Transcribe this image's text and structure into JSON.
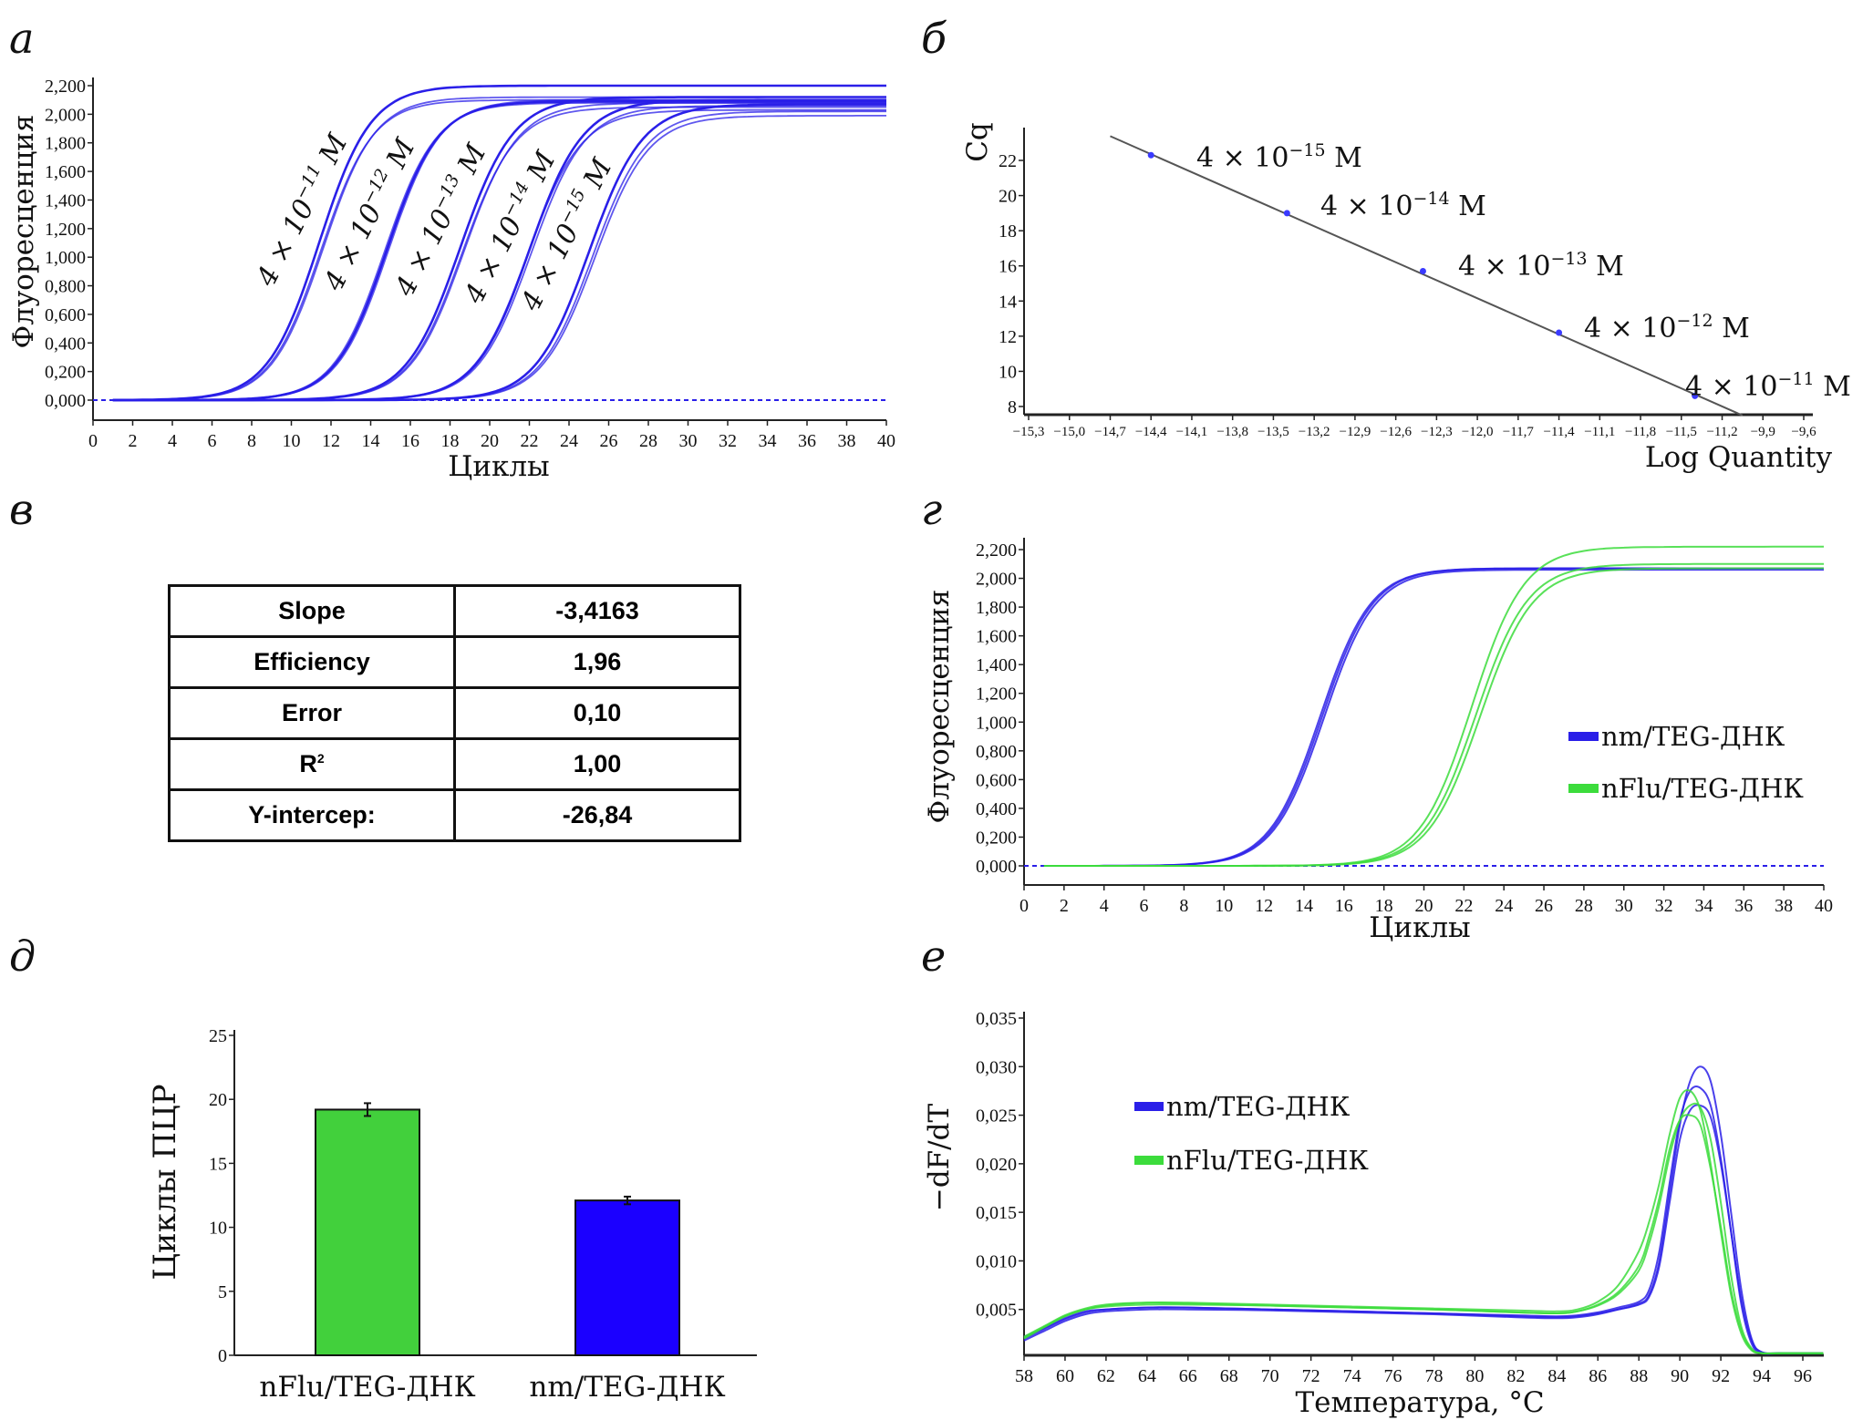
{
  "panel_letters": [
    "а",
    "б",
    "в",
    "г",
    "д",
    "е"
  ],
  "chart_data": [
    {
      "type": "line",
      "xlabel": "Циклы",
      "ylabel": "Флуоресценция",
      "xlim": [
        0,
        40
      ],
      "ylim": [
        0,
        2.2
      ],
      "xticks": [
        "0",
        "2",
        "4",
        "6",
        "8",
        "10",
        "12",
        "14",
        "16",
        "18",
        "20",
        "22",
        "24",
        "26",
        "28",
        "30",
        "32",
        "34",
        "36",
        "38",
        "40"
      ],
      "yticks": [
        "0,000",
        "0,200",
        "0,400",
        "0,600",
        "0,800",
        "1,000",
        "1,200",
        "1,400",
        "1,600",
        "1,800",
        "2,000",
        "2,200"
      ],
      "threshold": 0,
      "line_color": "#2a1fe8",
      "series": [
        {
          "label": {
            "base": "4 × 10",
            "exp": "−11",
            "unit": " M"
          },
          "steepness": 1.3,
          "replicates": [
            {
              "midpoint": 11.4,
              "plateau": 2.2
            },
            {
              "midpoint": 11.6,
              "plateau": 2.12
            },
            {
              "midpoint": 11.5,
              "plateau": 2.1
            }
          ]
        },
        {
          "label": {
            "base": "4 × 10",
            "exp": "−12",
            "unit": " M"
          },
          "steepness": 1.3,
          "replicates": [
            {
              "midpoint": 14.8,
              "plateau": 2.09
            },
            {
              "midpoint": 14.9,
              "plateau": 2.1
            },
            {
              "midpoint": 14.7,
              "plateau": 2.08
            }
          ]
        },
        {
          "label": {
            "base": "4 × 10",
            "exp": "−13",
            "unit": " M"
          },
          "steepness": 1.35,
          "replicates": [
            {
              "midpoint": 18.5,
              "plateau": 2.12
            },
            {
              "midpoint": 18.7,
              "plateau": 2.08
            },
            {
              "midpoint": 18.6,
              "plateau": 2.05
            }
          ]
        },
        {
          "label": {
            "base": "4 × 10",
            "exp": "−14",
            "unit": " M"
          },
          "steepness": 1.35,
          "replicates": [
            {
              "midpoint": 22.0,
              "plateau": 2.1
            },
            {
              "midpoint": 22.1,
              "plateau": 2.06
            },
            {
              "midpoint": 21.9,
              "plateau": 2.03
            }
          ]
        },
        {
          "label": {
            "base": "4 × 10",
            "exp": "−15",
            "unit": " M"
          },
          "steepness": 1.35,
          "replicates": [
            {
              "midpoint": 25.0,
              "plateau": 2.07
            },
            {
              "midpoint": 25.2,
              "plateau": 2.02
            },
            {
              "midpoint": 25.3,
              "plateau": 1.99
            }
          ]
        }
      ]
    },
    {
      "type": "scatter",
      "xlabel": "Log Quantity",
      "ylabel": "Cq",
      "xlim": [
        -15.3,
        -9.6
      ],
      "ylim": [
        8,
        22
      ],
      "xticks": [
        "−15,3",
        "−15,0",
        "−14,7",
        "−14,4",
        "−14,1",
        "−13,8",
        "−13,5",
        "−13,2",
        "−12,9",
        "−12,6",
        "−12,3",
        "−12,0",
        "−11,7",
        "−11,4",
        "−11,1",
        "−11,8",
        "−11,5",
        "−11,2",
        "−9,9",
        "−9,6"
      ],
      "yticks": [
        "8",
        "10",
        "12",
        "14",
        "16",
        "18",
        "20",
        "22"
      ],
      "point_color": "#3a3aff",
      "fit_line_color": "#555555",
      "fit_x_range": [
        -14.7,
        -10.05
      ],
      "points": [
        {
          "x": -14.4,
          "y": 22.3,
          "label": {
            "base": "4 × 10",
            "exp": "−15",
            "unit": " M"
          }
        },
        {
          "x": -13.4,
          "y": 19.0,
          "label": {
            "base": "4 × 10",
            "exp": "−14",
            "unit": " M"
          }
        },
        {
          "x": -12.4,
          "y": 15.7,
          "label": {
            "base": "4 × 10",
            "exp": "−13",
            "unit": " M"
          }
        },
        {
          "x": -11.4,
          "y": 12.2,
          "label": {
            "base": "4 × 10",
            "exp": "−12",
            "unit": " M"
          }
        },
        {
          "x": -10.4,
          "y": 8.6,
          "label": {
            "base": "4 × 10",
            "exp": "−11",
            "unit": " M"
          }
        }
      ]
    },
    {
      "type": "table",
      "rows": [
        {
          "label": "Slope",
          "sup": "",
          "value": "-3,4163"
        },
        {
          "label": "Efficiency",
          "sup": "",
          "value": "1,96"
        },
        {
          "label": "Error",
          "sup": "",
          "value": "0,10"
        },
        {
          "label": "R",
          "sup": "2",
          "value": "1,00"
        },
        {
          "label": "Y-intercep:",
          "sup": "",
          "value": "-26,84"
        }
      ]
    },
    {
      "type": "line",
      "xlabel": "Циклы",
      "ylabel": "Флуоресценция",
      "xlim": [
        0,
        40
      ],
      "ylim": [
        0,
        2.2
      ],
      "xticks": [
        "0",
        "2",
        "4",
        "6",
        "8",
        "10",
        "12",
        "14",
        "16",
        "18",
        "20",
        "22",
        "24",
        "26",
        "28",
        "30",
        "32",
        "34",
        "36",
        "38",
        "40"
      ],
      "yticks": [
        "0,000",
        "0,200",
        "0,400",
        "0,600",
        "0,800",
        "1,000",
        "1,200",
        "1,400",
        "1,600",
        "1,800",
        "2,000",
        "2,200"
      ],
      "threshold": 0,
      "legend": "right",
      "series": [
        {
          "name": "nm/TEG-ДНК",
          "color": "#2a1fe8",
          "steepness": 1.27,
          "replicates": [
            {
              "midpoint": 14.8,
              "plateau": 2.07
            },
            {
              "midpoint": 14.9,
              "plateau": 2.07
            },
            {
              "midpoint": 15.0,
              "plateau": 2.06
            }
          ]
        },
        {
          "name": "nFlu/TEG-ДНК",
          "color": "#3cdc3c",
          "steepness": 1.3,
          "replicates": [
            {
              "midpoint": 22.4,
              "plateau": 2.22
            },
            {
              "midpoint": 22.6,
              "plateau": 2.1
            },
            {
              "midpoint": 22.8,
              "plateau": 2.07
            }
          ]
        }
      ]
    },
    {
      "type": "bar",
      "ylabel": "Циклы ПЦР",
      "ylim": [
        0,
        25
      ],
      "yticks": [
        "0",
        "5",
        "10",
        "15",
        "20",
        "25"
      ],
      "categories": [
        "nFlu/TEG-ДНК",
        "nm/TEG-ДНК"
      ],
      "values": [
        19.2,
        12.1
      ],
      "errors": [
        0.5,
        0.3
      ],
      "colors": [
        "#42d03c",
        "#1b00ff"
      ]
    },
    {
      "type": "line",
      "xlabel": "Температура, °C",
      "ylabel": "−dF/dT",
      "xlim": [
        58,
        97
      ],
      "ylim": [
        0,
        0.035
      ],
      "xticks": [
        "58",
        "60",
        "62",
        "64",
        "66",
        "68",
        "70",
        "72",
        "74",
        "76",
        "78",
        "80",
        "82",
        "84",
        "86",
        "88",
        "90",
        "92",
        "94",
        "96"
      ],
      "yticks": [
        "0,005",
        "0,010",
        "0,015",
        "0,020",
        "0,025",
        "0,030",
        "0,035"
      ],
      "legend": "upper-left",
      "x": [
        58,
        59,
        60,
        61,
        62,
        64,
        66,
        70,
        74,
        78,
        82,
        84,
        85,
        86,
        87,
        88,
        88.5,
        89,
        89.5,
        90,
        90.5,
        91,
        91.5,
        92,
        92.5,
        93,
        93.5,
        94,
        95,
        97
      ],
      "series": [
        {
          "name": "nm/TEG-ДНК",
          "color": "#2a1fe8",
          "replicates": [
            [
              0.0018,
              0.0028,
              0.0038,
              0.0045,
              0.0048,
              0.005,
              0.005,
              0.0049,
              0.0047,
              0.0045,
              0.0042,
              0.0041,
              0.0042,
              0.0045,
              0.005,
              0.0056,
              0.0065,
              0.01,
              0.017,
              0.024,
              0.0285,
              0.03,
              0.0285,
              0.023,
              0.015,
              0.007,
              0.002,
              0.0006,
              0.0005,
              0.0005
            ],
            [
              0.002,
              0.003,
              0.004,
              0.0047,
              0.005,
              0.0052,
              0.0052,
              0.005,
              0.0048,
              0.0046,
              0.0044,
              0.0043,
              0.0044,
              0.0047,
              0.0052,
              0.0058,
              0.007,
              0.011,
              0.018,
              0.0245,
              0.0275,
              0.0278,
              0.026,
              0.0205,
              0.013,
              0.0055,
              0.0015,
              0.0005,
              0.0005,
              0.0005
            ],
            [
              0.0022,
              0.0031,
              0.0041,
              0.0048,
              0.005,
              0.0052,
              0.0052,
              0.005,
              0.0048,
              0.0046,
              0.0043,
              0.0042,
              0.0043,
              0.0046,
              0.005,
              0.0055,
              0.0063,
              0.0095,
              0.016,
              0.0225,
              0.0255,
              0.026,
              0.0248,
              0.02,
              0.013,
              0.006,
              0.0018,
              0.0006,
              0.0005,
              0.0005
            ]
          ]
        },
        {
          "name": "nFlu/TEG-ДНК",
          "color": "#3cdc3c",
          "replicates": [
            [
              0.002,
              0.0032,
              0.0043,
              0.005,
              0.0054,
              0.0057,
              0.0057,
              0.0055,
              0.0053,
              0.0051,
              0.0049,
              0.0048,
              0.005,
              0.0058,
              0.0075,
              0.011,
              0.014,
              0.018,
              0.023,
              0.0268,
              0.0275,
              0.0255,
              0.02,
              0.013,
              0.0065,
              0.0025,
              0.0008,
              0.0005,
              0.0005,
              0.0005
            ],
            [
              0.0022,
              0.0033,
              0.0044,
              0.0051,
              0.0055,
              0.0057,
              0.0056,
              0.0054,
              0.0052,
              0.005,
              0.0047,
              0.0046,
              0.0048,
              0.0055,
              0.0068,
              0.0095,
              0.0125,
              0.0165,
              0.0215,
              0.0245,
              0.025,
              0.024,
              0.0195,
              0.0135,
              0.007,
              0.0028,
              0.0009,
              0.0005,
              0.0005,
              0.0005
            ],
            [
              0.0021,
              0.0032,
              0.0043,
              0.005,
              0.0053,
              0.0055,
              0.0055,
              0.0054,
              0.0052,
              0.005,
              0.0047,
              0.0046,
              0.0048,
              0.0054,
              0.0066,
              0.009,
              0.0118,
              0.0158,
              0.0208,
              0.0245,
              0.026,
              0.0258,
              0.0225,
              0.016,
              0.0085,
              0.0032,
              0.001,
              0.0005,
              0.0005,
              0.0005
            ]
          ]
        }
      ]
    }
  ]
}
